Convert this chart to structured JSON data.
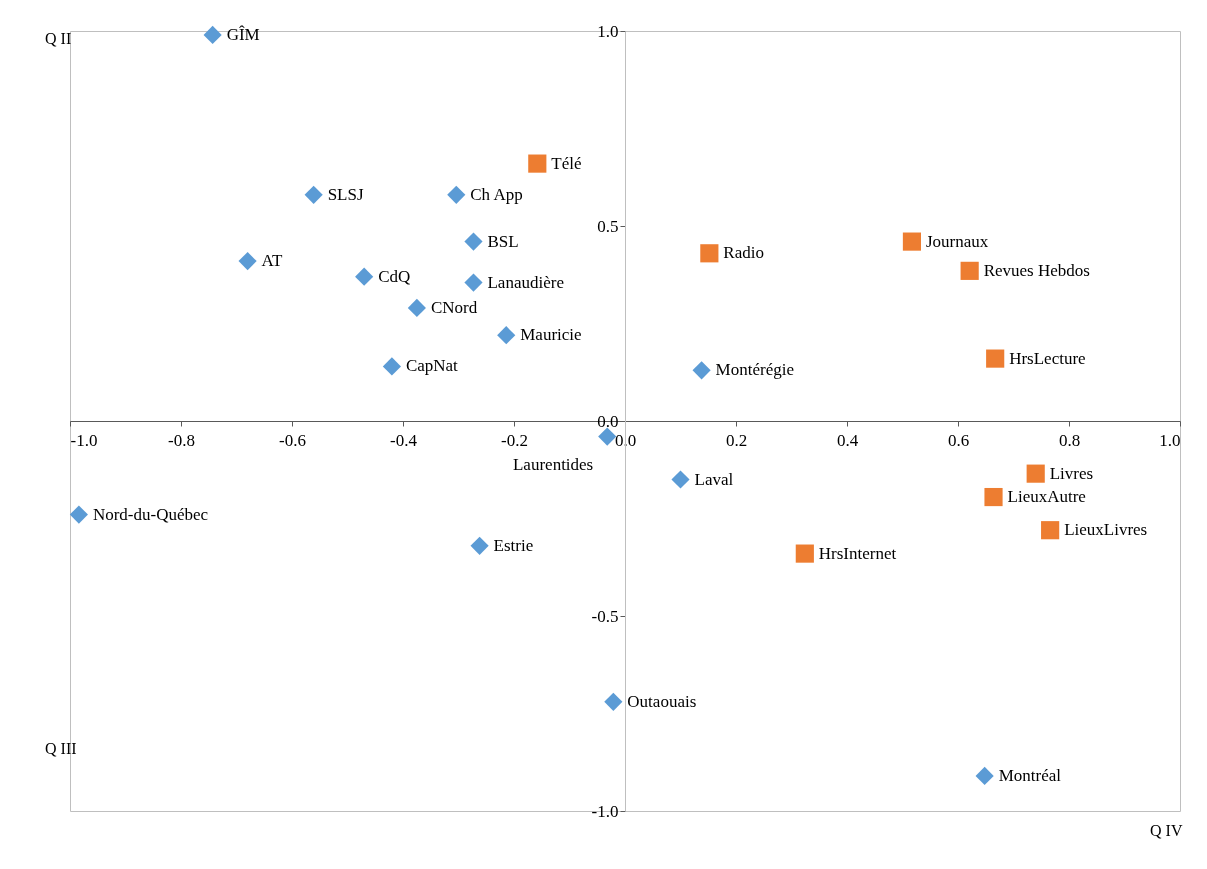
{
  "chart_data": {
    "type": "scatter",
    "xlim": [
      -1.0,
      1.0
    ],
    "xticks": [
      {
        "value": -1.0,
        "label": "-1.0"
      },
      {
        "value": -0.8,
        "label": "-0.8"
      },
      {
        "value": -0.6,
        "label": "-0.6"
      },
      {
        "value": -0.4,
        "label": "-0.4"
      },
      {
        "value": -0.2,
        "label": "-0.2"
      },
      {
        "value": 0,
        "label": "0.0"
      },
      0.2,
      0.4,
      0.6,
      0.8,
      {
        "value": 1.0,
        "label": "1.0"
      }
    ],
    "ylim": [
      -1.0,
      1.0
    ],
    "yticks": [
      {
        "value": -1.0,
        "label": "-1.0"
      },
      -0.5,
      {
        "value": 0,
        "label": "0.0"
      },
      0.5,
      {
        "value": 1.0,
        "label": "1.0"
      }
    ],
    "series": [
      {
        "color": "#5b9bd5",
        "marker": "diamond",
        "x": [
          -0.743,
          -0.561,
          -0.304,
          -0.68,
          -0.273,
          -0.47,
          -0.273,
          -0.375,
          -0.214,
          -0.42,
          0.138,
          -0.032,
          0.1,
          -0.984,
          -0.262,
          -0.021,
          0.648
        ],
        "values": [
          0.99,
          0.58,
          0.58,
          0.41,
          0.46,
          0.37,
          0.355,
          0.29,
          0.22,
          0.14,
          0.13,
          -0.04,
          -0.15,
          -0.24,
          -0.32,
          -0.72,
          -0.91
        ],
        "value_labels": [
          "GÎM",
          "SLSJ",
          "Ch App",
          "AT",
          "BSL",
          "CdQ",
          "Lanaudière",
          "CNord",
          "Mauricie",
          "CapNat",
          "Montérégie",
          "Laurentides",
          "Laval",
          "Nord-du-Québec",
          "Estrie",
          "Outaouais",
          "Montréal"
        ]
      },
      {
        "color": "#ed7d31",
        "marker": "square",
        "x": [
          -0.158,
          0.152,
          0.517,
          0.621,
          0.667,
          0.74,
          0.664,
          0.766,
          0.324
        ],
        "values": [
          0.66,
          0.43,
          0.46,
          0.385,
          0.16,
          -0.135,
          -0.195,
          -0.28,
          -0.34
        ],
        "value_labels": [
          "Télé",
          "Radio",
          "Journaux",
          "Revues Hebdos",
          "HrsLecture",
          "Livres",
          "LieuxAutre",
          "LieuxLivres",
          "HrsInternet"
        ]
      }
    ],
    "annotations": [
      "Q II",
      "Q III",
      "Q IV"
    ]
  }
}
